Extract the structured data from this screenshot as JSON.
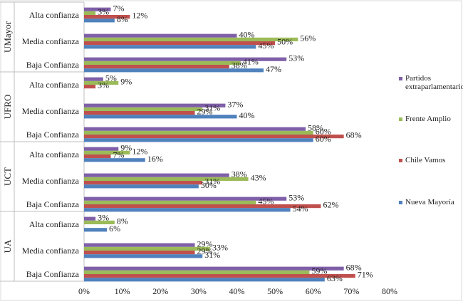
{
  "chart_data": {
    "type": "bar",
    "orientation": "horizontal",
    "xlim": [
      0,
      80
    ],
    "x_ticks": [
      "0%",
      "10%",
      "20%",
      "30%",
      "40%",
      "50%",
      "60%",
      "70%",
      "80%"
    ],
    "value_suffix": "%",
    "groups": [
      {
        "name": "UMayor",
        "categories": [
          {
            "name": "Alta confianza",
            "values": {
              "pe": 7,
              "fa": 3,
              "cv": 12,
              "nm": 8
            }
          },
          {
            "name": "Media confianza",
            "values": {
              "pe": 40,
              "fa": 56,
              "cv": 50,
              "nm": 45
            }
          },
          {
            "name": "Baja Confianza",
            "values": {
              "pe": 53,
              "fa": 41,
              "cv": 38,
              "nm": 47
            }
          }
        ]
      },
      {
        "name": "UFRO",
        "categories": [
          {
            "name": "Alta confianza",
            "values": {
              "pe": 5,
              "fa": 9,
              "cv": 3,
              "nm": 0
            }
          },
          {
            "name": "Media confianza",
            "values": {
              "pe": 37,
              "fa": 31,
              "cv": 29,
              "nm": 40
            }
          },
          {
            "name": "Baja Confianza",
            "values": {
              "pe": 58,
              "fa": 60,
              "cv": 68,
              "nm": 60
            }
          }
        ]
      },
      {
        "name": "UCT",
        "categories": [
          {
            "name": "Alta confianza",
            "values": {
              "pe": 9,
              "fa": 12,
              "cv": 7,
              "nm": 16
            }
          },
          {
            "name": "Media confianza",
            "values": {
              "pe": 38,
              "fa": 43,
              "cv": 31,
              "nm": 30
            }
          },
          {
            "name": "Baja Confianza",
            "values": {
              "pe": 53,
              "fa": 45,
              "cv": 62,
              "nm": 54
            }
          }
        ]
      },
      {
        "name": "UA",
        "categories": [
          {
            "name": "Alta confianza",
            "values": {
              "pe": 3,
              "fa": 8,
              "cv": 0,
              "nm": 6
            }
          },
          {
            "name": "Media confianza",
            "values": {
              "pe": 29,
              "fa": 33,
              "cv": 29,
              "nm": 31
            }
          },
          {
            "name": "Baja Confianza",
            "values": {
              "pe": 68,
              "fa": 59,
              "cv": 71,
              "nm": 63
            }
          }
        ]
      }
    ],
    "series": [
      {
        "key": "pe",
        "name": "Partidos extraparlamentarios",
        "name_lines": [
          "Partidos",
          "extraparlamentarios"
        ],
        "color": "#7F5FA8"
      },
      {
        "key": "fa",
        "name": "Frente Amplio",
        "name_lines": [
          "Frente Amplio"
        ],
        "color": "#9BBB59"
      },
      {
        "key": "cv",
        "name": "Chile Vamos",
        "name_lines": [
          "Chile Vamos"
        ],
        "color": "#C0504D"
      },
      {
        "key": "nm",
        "name": "Nueva Mayoría",
        "name_lines": [
          "Nueva Mayoría"
        ],
        "color": "#4F81BD"
      }
    ],
    "legend_position": "right",
    "grid": false
  }
}
